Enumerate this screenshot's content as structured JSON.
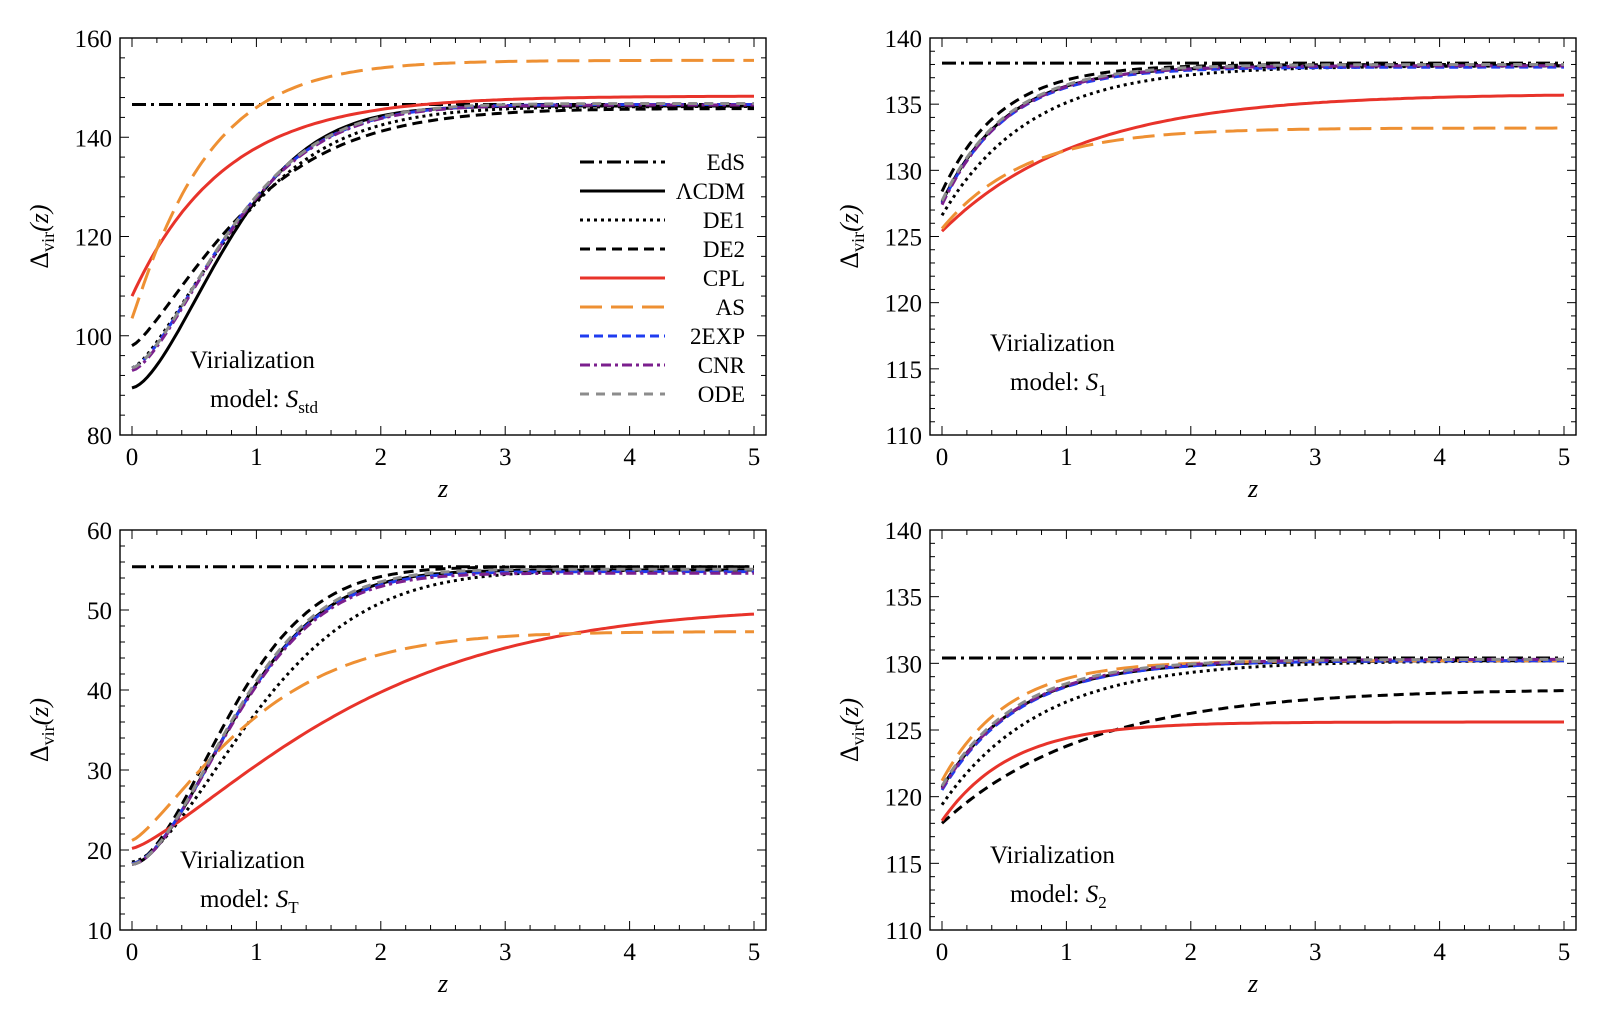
{
  "styles": {
    "EdS": {
      "color": "#000000",
      "dash": "14,5,3,5",
      "width": 3
    },
    "LCDM": {
      "color": "#000000",
      "dash": "",
      "width": 3
    },
    "DE1": {
      "color": "#000000",
      "dash": "3,4",
      "width": 3
    },
    "DE2": {
      "color": "#000000",
      "dash": "10,6",
      "width": 3
    },
    "CPL": {
      "color": "#e8332a",
      "dash": "",
      "width": 3
    },
    "AS": {
      "color": "#ee9033",
      "dash": "22,9",
      "width": 3
    },
    "2EXP": {
      "color": "#1f3cf0",
      "dash": "9,5",
      "width": 3
    },
    "CNR": {
      "color": "#7b1f8e",
      "dash": "10,4,3,4",
      "width": 3
    },
    "ODE": {
      "color": "#8c8c8c",
      "dash": "9,7",
      "width": 3
    }
  },
  "legend": [
    {
      "key": "EdS",
      "label": "EdS"
    },
    {
      "key": "LCDM",
      "label": "ΛCDM"
    },
    {
      "key": "DE1",
      "label": "DE1"
    },
    {
      "key": "DE2",
      "label": "DE2"
    },
    {
      "key": "CPL",
      "label": "CPL"
    },
    {
      "key": "AS",
      "label": "AS"
    },
    {
      "key": "2EXP",
      "label": "2EXP"
    },
    {
      "key": "CNR",
      "label": "CNR"
    },
    {
      "key": "ODE",
      "label": "ODE"
    }
  ],
  "chart_data": [
    {
      "type": "line",
      "panel": "top-left",
      "xlabel": "z",
      "ylabel_main": "Δ",
      "ylabel_sub": "vir",
      "ylabel_tail": "(z)",
      "xlim": [
        0,
        5
      ],
      "ylim": [
        80,
        160
      ],
      "xticks": [
        0,
        1,
        2,
        3,
        4,
        5
      ],
      "yticks": [
        80,
        100,
        120,
        140,
        160
      ],
      "note_line1": "Virialization",
      "note_line2_prefix": "model: ",
      "note_symbol": "S",
      "note_sub": "std",
      "legend_position": "right-middle",
      "series": [
        {
          "key": "EdS",
          "name": "EdS",
          "start": 146.6,
          "end": 146.6,
          "rate": 1,
          "p": 1
        },
        {
          "key": "LCDM",
          "name": "ΛCDM",
          "start": 89.5,
          "end": 146.3,
          "rate": 1.1,
          "p": 1.6
        },
        {
          "key": "DE1",
          "name": "DE1",
          "start": 93.5,
          "end": 146.2,
          "rate": 1.0,
          "p": 1.4
        },
        {
          "key": "DE2",
          "name": "DE2",
          "start": 98,
          "end": 145.8,
          "rate": 0.95,
          "p": 1.3
        },
        {
          "key": "CPL",
          "name": "CPL",
          "start": 108,
          "end": 148.3,
          "rate": 1.35,
          "p": 1.0
        },
        {
          "key": "AS",
          "name": "AS",
          "start": 103.5,
          "end": 155.5,
          "rate": 1.7,
          "p": 1.05
        },
        {
          "key": "2EXP",
          "name": "2EXP",
          "start": 93.5,
          "end": 146.6,
          "rate": 1.05,
          "p": 1.5
        },
        {
          "key": "CNR",
          "name": "CNR",
          "start": 93,
          "end": 146.5,
          "rate": 1.05,
          "p": 1.5
        },
        {
          "key": "ODE",
          "name": "ODE",
          "start": 93.5,
          "end": 146.8,
          "rate": 1.05,
          "p": 1.5
        }
      ]
    },
    {
      "type": "line",
      "panel": "top-right",
      "xlabel": "z",
      "ylabel_main": "Δ",
      "ylabel_sub": "vir",
      "ylabel_tail": "(z)",
      "xlim": [
        0,
        5
      ],
      "ylim": [
        110,
        140
      ],
      "xticks": [
        0,
        1,
        2,
        3,
        4,
        5
      ],
      "yticks": [
        110,
        115,
        120,
        125,
        130,
        135,
        140
      ],
      "note_line1": "Virialization",
      "note_line2_prefix": "model: ",
      "note_symbol": "S",
      "note_sub": "1",
      "series": [
        {
          "key": "EdS",
          "name": "EdS",
          "start": 138.1,
          "end": 138.1,
          "rate": 1,
          "p": 1
        },
        {
          "key": "LCDM",
          "name": "ΛCDM",
          "start": 127.6,
          "end": 137.9,
          "rate": 1.9,
          "p": 1
        },
        {
          "key": "DE1",
          "name": "DE1",
          "start": 126.6,
          "end": 137.9,
          "rate": 1.4,
          "p": 1
        },
        {
          "key": "DE2",
          "name": "DE2",
          "start": 128.4,
          "end": 138.0,
          "rate": 2.1,
          "p": 1
        },
        {
          "key": "CPL",
          "name": "CPL",
          "start": 125.4,
          "end": 135.8,
          "rate": 0.9,
          "p": 1
        },
        {
          "key": "AS",
          "name": "AS",
          "start": 125.6,
          "end": 133.2,
          "rate": 1.5,
          "p": 1
        },
        {
          "key": "2EXP",
          "name": "2EXP",
          "start": 127.5,
          "end": 137.8,
          "rate": 1.9,
          "p": 1
        },
        {
          "key": "CNR",
          "name": "CNR",
          "start": 127.4,
          "end": 137.9,
          "rate": 1.9,
          "p": 1
        },
        {
          "key": "ODE",
          "name": "ODE",
          "start": 127.7,
          "end": 138.0,
          "rate": 1.9,
          "p": 1
        }
      ]
    },
    {
      "type": "line",
      "panel": "bottom-left",
      "xlabel": "z",
      "ylabel_main": "Δ",
      "ylabel_sub": "vir",
      "ylabel_tail": "(z)",
      "xlim": [
        0,
        5
      ],
      "ylim": [
        10,
        60
      ],
      "xticks": [
        0,
        1,
        2,
        3,
        4,
        5
      ],
      "yticks": [
        10,
        20,
        30,
        40,
        50,
        60
      ],
      "note_line1": "Virialization",
      "note_line2_prefix": "model: ",
      "note_symbol": "S",
      "note_sub": "T",
      "series": [
        {
          "key": "EdS",
          "name": "EdS",
          "start": 55.4,
          "end": 55.4,
          "rate": 1,
          "p": 1
        },
        {
          "key": "LCDM",
          "name": "ΛCDM",
          "start": 18.2,
          "end": 55.0,
          "rate": 0.95,
          "p": 1.7
        },
        {
          "key": "DE1",
          "name": "DE1",
          "start": 18.5,
          "end": 55.0,
          "rate": 0.72,
          "p": 1.6
        },
        {
          "key": "DE2",
          "name": "DE2",
          "start": 18.3,
          "end": 55.4,
          "rate": 1.05,
          "p": 1.7
        },
        {
          "key": "CPL",
          "name": "CPL",
          "start": 20.2,
          "end": 50.5,
          "rate": 0.42,
          "p": 1.3
        },
        {
          "key": "AS",
          "name": "AS",
          "start": 21.2,
          "end": 47.3,
          "rate": 0.9,
          "p": 1.3
        },
        {
          "key": "2EXP",
          "name": "2EXP",
          "start": 18.3,
          "end": 54.8,
          "rate": 0.95,
          "p": 1.7
        },
        {
          "key": "CNR",
          "name": "CNR",
          "start": 18.2,
          "end": 54.6,
          "rate": 0.95,
          "p": 1.7
        },
        {
          "key": "ODE",
          "name": "ODE",
          "start": 18.2,
          "end": 55.1,
          "rate": 0.97,
          "p": 1.7
        }
      ]
    },
    {
      "type": "line",
      "panel": "bottom-right",
      "xlabel": "z",
      "ylabel_main": "Δ",
      "ylabel_sub": "vir",
      "ylabel_tail": "(z)",
      "xlim": [
        0,
        5
      ],
      "ylim": [
        110,
        140
      ],
      "xticks": [
        0,
        1,
        2,
        3,
        4,
        5
      ],
      "yticks": [
        110,
        115,
        120,
        125,
        130,
        135,
        140
      ],
      "note_line1": "Virialization",
      "note_line2_prefix": "model: ",
      "note_symbol": "S",
      "note_sub": "2",
      "series": [
        {
          "key": "EdS",
          "name": "EdS",
          "start": 130.4,
          "end": 130.4,
          "rate": 1,
          "p": 1
        },
        {
          "key": "LCDM",
          "name": "ΛCDM",
          "start": 120.7,
          "end": 130.2,
          "rate": 1.6,
          "p": 1
        },
        {
          "key": "DE1",
          "name": "DE1",
          "start": 119.4,
          "end": 130.2,
          "rate": 1.25,
          "p": 1
        },
        {
          "key": "DE2",
          "name": "DE2",
          "start": 118.0,
          "end": 128.1,
          "rate": 0.85,
          "p": 1
        },
        {
          "key": "CPL",
          "name": "CPL",
          "start": 118.2,
          "end": 125.6,
          "rate": 1.8,
          "p": 1
        },
        {
          "key": "AS",
          "name": "AS",
          "start": 121.2,
          "end": 130.2,
          "rate": 1.9,
          "p": 1
        },
        {
          "key": "2EXP",
          "name": "2EXP",
          "start": 120.5,
          "end": 130.2,
          "rate": 1.6,
          "p": 1
        },
        {
          "key": "CNR",
          "name": "CNR",
          "start": 120.6,
          "end": 130.3,
          "rate": 1.6,
          "p": 1
        },
        {
          "key": "ODE",
          "name": "ODE",
          "start": 120.8,
          "end": 130.3,
          "rate": 1.65,
          "p": 1
        }
      ]
    }
  ]
}
